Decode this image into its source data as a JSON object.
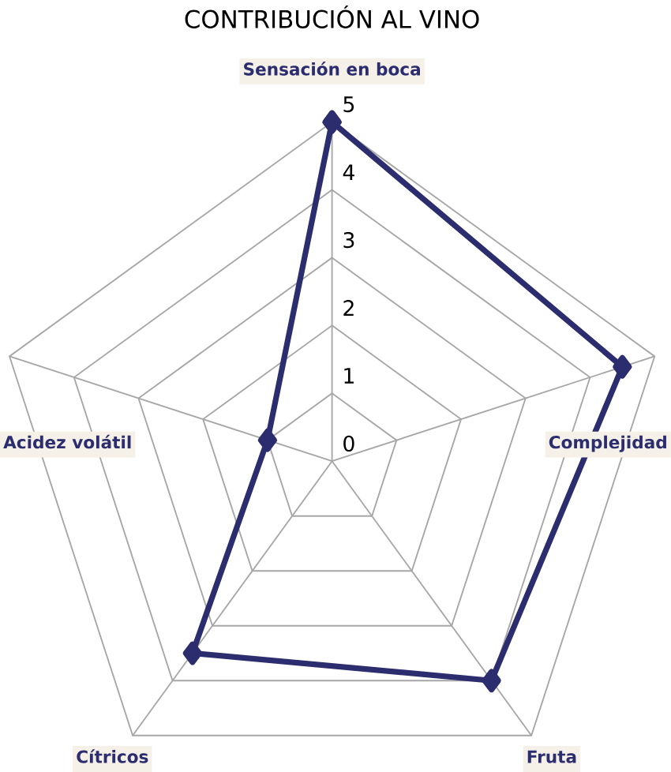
{
  "chart_data": {
    "type": "radar",
    "title": "CONTRIBUCIÓN AL VINO",
    "categories": [
      "Sensación en boca",
      "Complejidad",
      "Fruta",
      "Cítricos",
      "Acidez volátil"
    ],
    "series": [
      {
        "color": "#2b2d6e",
        "values": [
          5,
          4.5,
          4,
          3.5,
          1
        ]
      }
    ],
    "ylim": [
      0,
      5
    ],
    "yticks": [
      0,
      1,
      2,
      3,
      4,
      5
    ],
    "grid": true,
    "marker": "diamond",
    "line_style": "solid"
  }
}
